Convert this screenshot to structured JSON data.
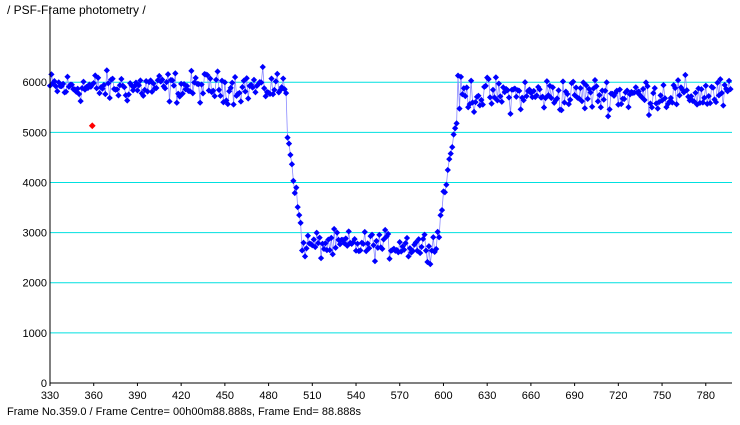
{
  "title": "/ PSF-Frame photometry /",
  "status_line": "Frame No.359.0 / Frame Centre= 00h00m88.888s,  Frame End= 88.888s",
  "chart_data": {
    "type": "scatter",
    "title": "PSF-Frame photometry",
    "xlabel": "",
    "ylabel": "",
    "xlim": [
      330,
      798
    ],
    "ylim": [
      0,
      7400
    ],
    "x_ticks": [
      "330",
      "360",
      "390",
      "420",
      "450",
      "480",
      "510",
      "540",
      "570",
      "600",
      "630",
      "660",
      "690",
      "720",
      "750",
      "780"
    ],
    "y_ticks": [
      "0",
      "1000",
      "2000",
      "3000",
      "4000",
      "5000",
      "6000"
    ],
    "gridlines_y": [
      1000,
      2000,
      3000,
      4000,
      5000,
      6000
    ],
    "colors": {
      "series": "#0000ff",
      "line": "#8a8aff",
      "highlight": "#ff0000",
      "grid": "#00e0e0"
    },
    "highlight_point": {
      "x": 359,
      "y": 5130
    },
    "segments": [
      {
        "x_start": 330,
        "x_end": 493,
        "mean": 5900,
        "spread": 450
      },
      {
        "x_start": 493,
        "x_end": 503,
        "mean_start": 5000,
        "mean_end": 2900,
        "spread": 250
      },
      {
        "x_start": 503,
        "x_end": 596,
        "mean": 2750,
        "spread": 400
      },
      {
        "x_start": 596,
        "x_end": 610,
        "mean_start": 2950,
        "mean_end": 5500,
        "spread": 300
      },
      {
        "x_start": 610,
        "x_end": 798,
        "mean": 5750,
        "spread": 500
      }
    ],
    "step": 1
  }
}
